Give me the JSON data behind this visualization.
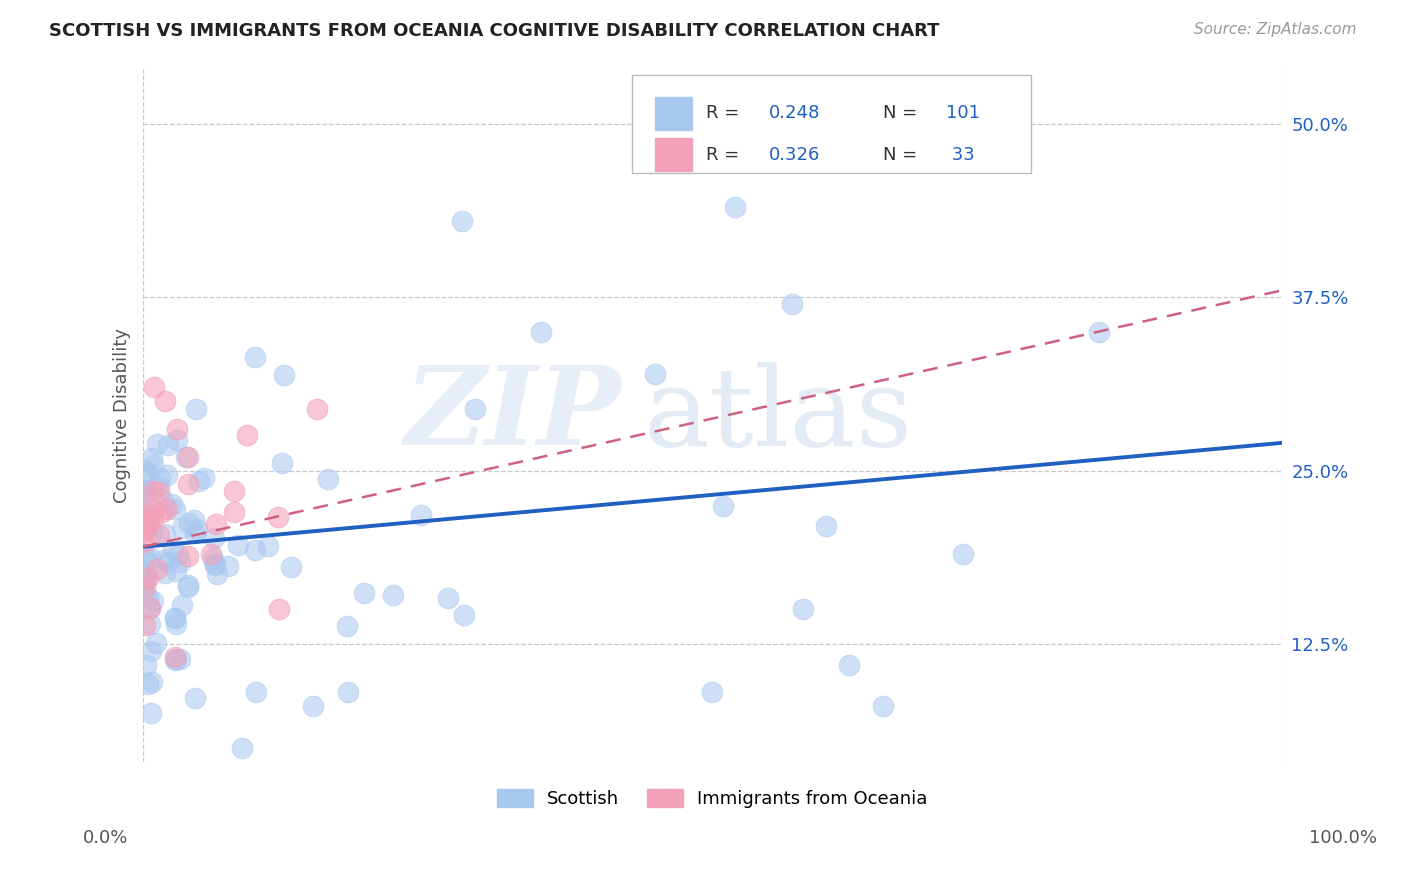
{
  "title": "SCOTTISH VS IMMIGRANTS FROM OCEANIA COGNITIVE DISABILITY CORRELATION CHART",
  "source": "Source: ZipAtlas.com",
  "ylabel": "Cognitive Disability",
  "yticks": [
    "12.5%",
    "25.0%",
    "37.5%",
    "50.0%"
  ],
  "ytick_vals": [
    0.125,
    0.25,
    0.375,
    0.5
  ],
  "xlim": [
    0.0,
    1.0
  ],
  "ylim": [
    0.04,
    0.54
  ],
  "blue_color": "#a8c8f0",
  "pink_color": "#f4a0b8",
  "line_blue": "#2060c0",
  "line_pink": "#d06080",
  "background": "#ffffff",
  "grid_color": "#c8c8c8",
  "blue_line_start": 0.195,
  "blue_line_end": 0.27,
  "pink_line_start": 0.195,
  "pink_line_end": 0.38,
  "watermark_zip_color": "#d8e4f0",
  "watermark_atlas_color": "#c8d8e8"
}
